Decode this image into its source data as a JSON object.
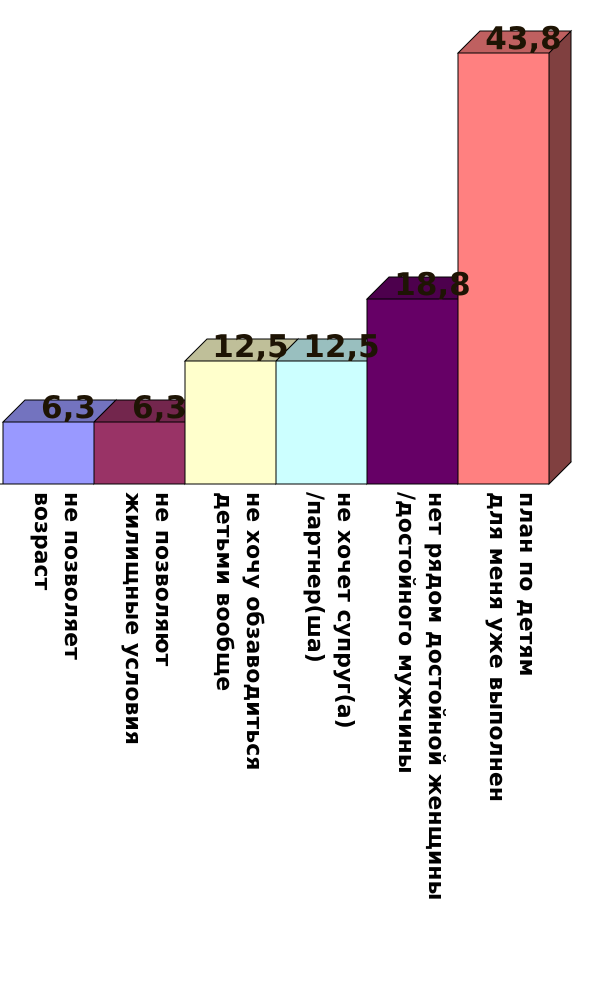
{
  "chart_data": {
    "type": "bar",
    "style": "3d-columns",
    "categories": [
      [
        "не позволяет",
        "возраст"
      ],
      [
        "не позволяют",
        "жилищные условия"
      ],
      [
        "не хочу обзаводиться",
        "детьми вообще"
      ],
      [
        "не хочет супруг(а)",
        "/партнер(ша)"
      ],
      [
        "нет рядом достойной женщины",
        "/достойного мужчины"
      ],
      [
        "план по детям",
        "для меня уже выполнен"
      ]
    ],
    "values": [
      6.3,
      6.3,
      12.5,
      12.5,
      18.8,
      43.8
    ],
    "value_labels": [
      "6,3",
      "6,3",
      "12,5",
      "12,5",
      "18,8",
      "43,8"
    ],
    "colors": [
      "#9999ff",
      "#993366",
      "#ffffcc",
      "#ccffff",
      "#660066",
      "#ff8080"
    ],
    "legend": "none",
    "grid": false
  }
}
